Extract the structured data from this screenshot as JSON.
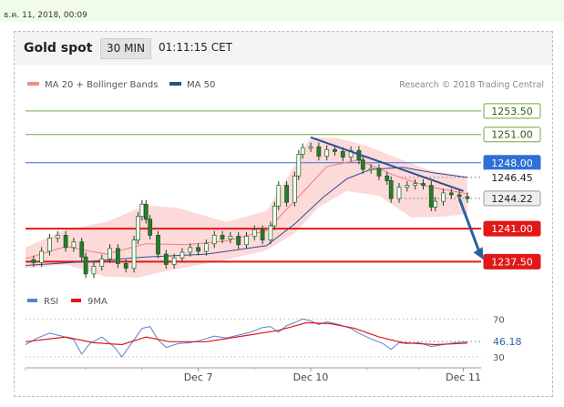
{
  "timestamp": "ธ.ค. 11, 2018, 00:09",
  "header": {
    "title": "Gold spot",
    "timeframe": "30 MIN",
    "clock": "01:11:15 CET"
  },
  "credit": "Research © 2018 Trading Central",
  "colors": {
    "resistance": "#6aab3a",
    "pivot": "#2f6fd6",
    "support": "#e01818",
    "ma20": "#f07c7c",
    "band": "#fbd3d3",
    "ma50": "#2f4e8f",
    "arrow": "#2e5f9e",
    "candle": "#2b7a2b",
    "rsi": "#5b7fd4",
    "rsi_ma": "#e01818"
  },
  "chart_data": [
    {
      "type": "line",
      "title": "Gold spot",
      "legend": [
        {
          "name": "MA 20 + Bollinger Bands",
          "color": "#f08c8c"
        },
        {
          "name": "MA 50",
          "color": "#2f4e8f"
        }
      ],
      "ylim": [
        1235.6,
        1256.1
      ],
      "x_ticks": [
        {
          "label": "Dec 7",
          "x": 86
        },
        {
          "label": "Dec 10",
          "x": 142
        },
        {
          "label": "Dec 11",
          "x": 218
        }
      ],
      "xlim": [
        0,
        225
      ],
      "price_levels": [
        {
          "label": "1253.50",
          "value": 1253.5,
          "kind": "resistance"
        },
        {
          "label": "1251.00",
          "value": 1251.0,
          "kind": "resistance"
        },
        {
          "label": "1248.00",
          "value": 1248.0,
          "kind": "pivot"
        },
        {
          "label": "1246.45",
          "value": 1246.45,
          "kind": "ma-value"
        },
        {
          "label": "1244.22",
          "value": 1244.22,
          "kind": "last-price"
        },
        {
          "label": "1241.00",
          "value": 1241.0,
          "kind": "support"
        },
        {
          "label": "1237.50",
          "value": 1237.5,
          "kind": "support"
        }
      ],
      "close_series": [
        [
          0,
          1237.7
        ],
        [
          4,
          1237.4
        ],
        [
          8,
          1238.6
        ],
        [
          12,
          1240.0
        ],
        [
          16,
          1240.3
        ],
        [
          20,
          1239.0
        ],
        [
          24,
          1239.6
        ],
        [
          28,
          1238.0
        ],
        [
          30,
          1236.2
        ],
        [
          34,
          1237.0
        ],
        [
          38,
          1237.8
        ],
        [
          42,
          1238.9
        ],
        [
          46,
          1237.3
        ],
        [
          50,
          1236.8
        ],
        [
          54,
          1239.8
        ],
        [
          56,
          1242.3
        ],
        [
          58,
          1243.6
        ],
        [
          60,
          1242.0
        ],
        [
          62,
          1240.3
        ],
        [
          66,
          1238.3
        ],
        [
          70,
          1237.2
        ],
        [
          74,
          1237.9
        ],
        [
          78,
          1238.5
        ],
        [
          82,
          1239.0
        ],
        [
          86,
          1238.6
        ],
        [
          90,
          1239.4
        ],
        [
          94,
          1240.3
        ],
        [
          98,
          1239.9
        ],
        [
          102,
          1240.2
        ],
        [
          106,
          1239.3
        ],
        [
          110,
          1240.2
        ],
        [
          114,
          1240.9
        ],
        [
          118,
          1239.8
        ],
        [
          122,
          1241.3
        ],
        [
          124,
          1243.4
        ],
        [
          126,
          1245.6
        ],
        [
          130,
          1243.8
        ],
        [
          134,
          1246.6
        ],
        [
          136,
          1248.9
        ],
        [
          138,
          1249.6
        ],
        [
          142,
          1249.7
        ],
        [
          146,
          1248.7
        ],
        [
          150,
          1249.4
        ],
        [
          154,
          1249.2
        ],
        [
          158,
          1248.6
        ],
        [
          162,
          1249.3
        ],
        [
          166,
          1248.3
        ],
        [
          168,
          1247.3
        ],
        [
          172,
          1247.4
        ],
        [
          176,
          1246.6
        ],
        [
          180,
          1246.1
        ],
        [
          182,
          1244.2
        ],
        [
          186,
          1245.4
        ],
        [
          190,
          1245.6
        ],
        [
          194,
          1245.8
        ],
        [
          198,
          1245.6
        ],
        [
          202,
          1243.3
        ],
        [
          204,
          1243.9
        ],
        [
          208,
          1244.8
        ],
        [
          212,
          1244.6
        ],
        [
          216,
          1244.4
        ],
        [
          220,
          1244.2
        ]
      ],
      "ma20_series": [
        [
          0,
          1237.8
        ],
        [
          20,
          1239.1
        ],
        [
          40,
          1238.3
        ],
        [
          60,
          1239.4
        ],
        [
          80,
          1239.3
        ],
        [
          100,
          1239.7
        ],
        [
          120,
          1240.8
        ],
        [
          136,
          1244.4
        ],
        [
          150,
          1247.6
        ],
        [
          166,
          1248.3
        ],
        [
          182,
          1246.8
        ],
        [
          200,
          1245.5
        ],
        [
          220,
          1244.7
        ]
      ],
      "band_upper": [
        [
          0,
          1239.0
        ],
        [
          20,
          1240.9
        ],
        [
          40,
          1241.7
        ],
        [
          60,
          1243.5
        ],
        [
          76,
          1243.2
        ],
        [
          100,
          1241.7
        ],
        [
          120,
          1242.9
        ],
        [
          132,
          1247.0
        ],
        [
          142,
          1250.7
        ],
        [
          156,
          1250.6
        ],
        [
          170,
          1249.8
        ],
        [
          184,
          1248.6
        ],
        [
          200,
          1247.3
        ],
        [
          220,
          1246.5
        ]
      ],
      "band_lower": [
        [
          0,
          1236.8
        ],
        [
          20,
          1237.2
        ],
        [
          40,
          1235.9
        ],
        [
          56,
          1235.8
        ],
        [
          70,
          1236.5
        ],
        [
          100,
          1237.7
        ],
        [
          120,
          1238.7
        ],
        [
          134,
          1240.5
        ],
        [
          146,
          1243.3
        ],
        [
          160,
          1245.0
        ],
        [
          176,
          1244.5
        ],
        [
          192,
          1242.2
        ],
        [
          210,
          1242.3
        ],
        [
          220,
          1242.6
        ]
      ],
      "ma50_series": [
        [
          0,
          1237.1
        ],
        [
          30,
          1237.5
        ],
        [
          60,
          1238.0
        ],
        [
          90,
          1238.3
        ],
        [
          120,
          1239.2
        ],
        [
          134,
          1241.5
        ],
        [
          148,
          1244.3
        ],
        [
          160,
          1246.3
        ],
        [
          172,
          1247.3
        ],
        [
          188,
          1247.5
        ],
        [
          204,
          1246.9
        ],
        [
          220,
          1246.45
        ]
      ],
      "trendline": [
        [
          142,
          1250.7
        ],
        [
          218,
          1245.0
        ]
      ],
      "forecast_arrow": [
        [
          216,
          1244.2
        ],
        [
          228,
          1237.7
        ]
      ]
    },
    {
      "type": "line",
      "legend": [
        {
          "name": "RSI",
          "color": "#5b7fd4"
        },
        {
          "name": "9MA",
          "color": "#e01818"
        }
      ],
      "ylim": [
        24.3,
        76.0
      ],
      "y_ticks": [
        "70",
        "30"
      ],
      "last_value": "46.18",
      "rsi_series": [
        [
          0,
          43
        ],
        [
          6,
          50
        ],
        [
          12,
          55
        ],
        [
          18,
          52
        ],
        [
          24,
          48
        ],
        [
          28,
          33
        ],
        [
          32,
          44
        ],
        [
          38,
          51
        ],
        [
          44,
          41
        ],
        [
          48,
          30
        ],
        [
          54,
          48
        ],
        [
          58,
          60
        ],
        [
          62,
          62
        ],
        [
          66,
          48
        ],
        [
          70,
          40
        ],
        [
          76,
          44
        ],
        [
          82,
          45
        ],
        [
          88,
          48
        ],
        [
          94,
          52
        ],
        [
          100,
          50
        ],
        [
          106,
          53
        ],
        [
          112,
          56
        ],
        [
          118,
          61
        ],
        [
          122,
          62
        ],
        [
          126,
          56
        ],
        [
          130,
          63
        ],
        [
          134,
          66
        ],
        [
          138,
          70
        ],
        [
          142,
          68
        ],
        [
          146,
          64
        ],
        [
          150,
          67
        ],
        [
          156,
          64
        ],
        [
          162,
          60
        ],
        [
          166,
          55
        ],
        [
          172,
          49
        ],
        [
          178,
          44
        ],
        [
          182,
          38
        ],
        [
          186,
          45
        ],
        [
          190,
          44
        ],
        [
          196,
          45
        ],
        [
          202,
          41
        ],
        [
          208,
          43
        ],
        [
          214,
          45
        ],
        [
          220,
          46
        ]
      ],
      "rsi_ma_series": [
        [
          0,
          46
        ],
        [
          20,
          51
        ],
        [
          34,
          45
        ],
        [
          48,
          43
        ],
        [
          60,
          51
        ],
        [
          72,
          46
        ],
        [
          90,
          46
        ],
        [
          108,
          52
        ],
        [
          126,
          58
        ],
        [
          140,
          66
        ],
        [
          152,
          65
        ],
        [
          164,
          60
        ],
        [
          176,
          51
        ],
        [
          188,
          45
        ],
        [
          204,
          43
        ],
        [
          220,
          44.5
        ]
      ]
    }
  ]
}
